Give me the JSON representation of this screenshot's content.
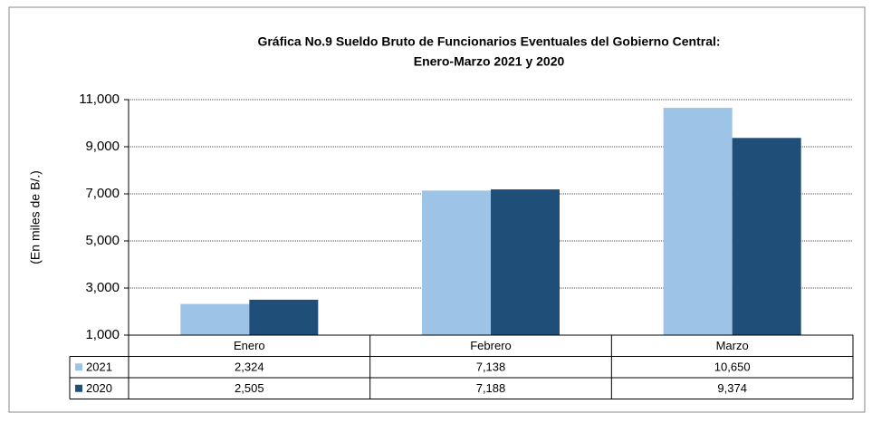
{
  "chart_data": {
    "type": "bar",
    "title": "Gráfica No.9 Sueldo Bruto de Funcionarios Eventuales del  Gobierno Central:",
    "subtitle": "Enero-Marzo 2021 y 2020",
    "y_label": "(En miles de B/.)",
    "categories": [
      "Enero",
      "Febrero",
      "Marzo"
    ],
    "series": [
      {
        "name": "2021",
        "color": "#9dc3e6",
        "values": [
          2324,
          7138,
          10650
        ],
        "value_labels": [
          "2,324",
          "7,138",
          "10,650"
        ]
      },
      {
        "name": "2020",
        "color": "#1f4e79",
        "values": [
          2505,
          7188,
          9374
        ],
        "value_labels": [
          "2,505",
          "7,188",
          "9,374"
        ]
      }
    ],
    "ylim": [
      1000,
      11000
    ],
    "yticks": [
      {
        "value": 1000,
        "label": "1,000"
      },
      {
        "value": 3000,
        "label": "3,000"
      },
      {
        "value": 5000,
        "label": "5,000"
      },
      {
        "value": 7000,
        "label": "7,000"
      },
      {
        "value": 9000,
        "label": "9,000"
      },
      {
        "value": 11000,
        "label": "11,000"
      }
    ],
    "grid": true
  }
}
